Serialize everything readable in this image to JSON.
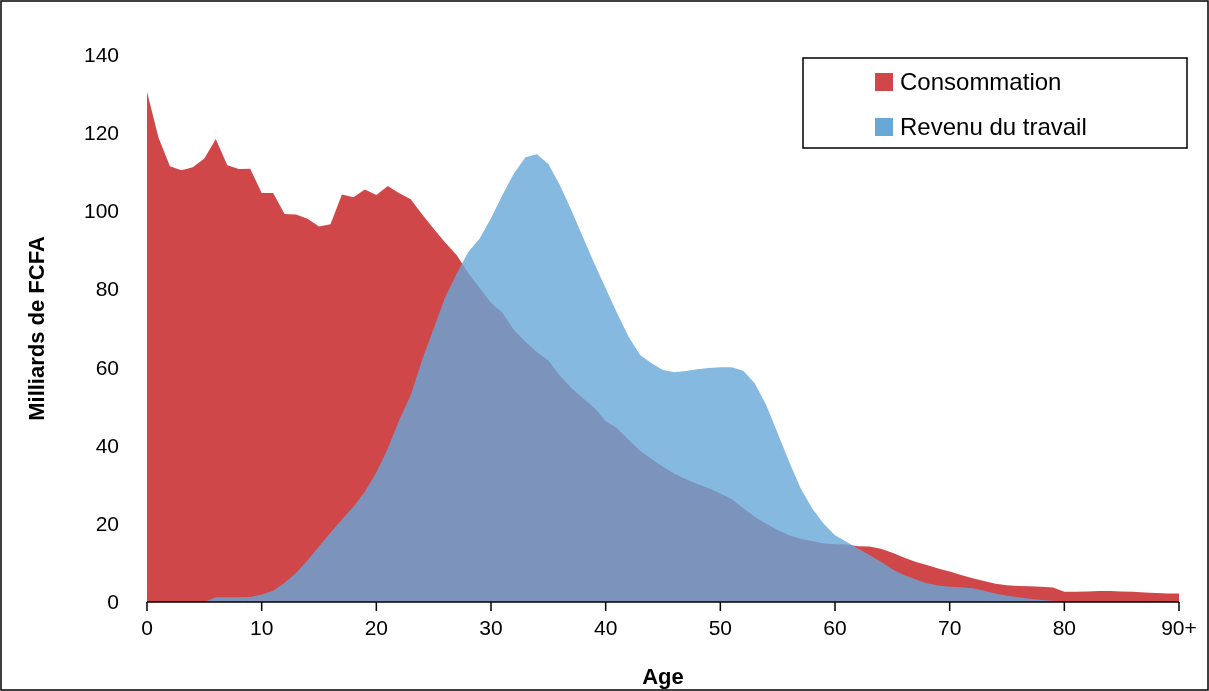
{
  "chart_data": {
    "type": "area",
    "xlabel": "Age",
    "ylabel": "Milliards de FCFA",
    "x": [
      0,
      1,
      2,
      3,
      4,
      5,
      6,
      7,
      8,
      9,
      10,
      11,
      12,
      13,
      14,
      15,
      16,
      17,
      18,
      19,
      20,
      21,
      22,
      23,
      24,
      25,
      26,
      27,
      28,
      29,
      30,
      31,
      32,
      33,
      34,
      35,
      36,
      37,
      38,
      39,
      40,
      41,
      42,
      43,
      44,
      45,
      46,
      47,
      48,
      49,
      50,
      51,
      52,
      53,
      54,
      55,
      56,
      57,
      58,
      59,
      60,
      61,
      62,
      63,
      64,
      65,
      66,
      67,
      68,
      69,
      70,
      71,
      72,
      73,
      74,
      75,
      76,
      77,
      78,
      79,
      80,
      81,
      82,
      83,
      84,
      85,
      86,
      87,
      88,
      89,
      90
    ],
    "series": [
      {
        "name": "Consommation",
        "color": "#d0474a",
        "values": [
          130.6,
          118.9,
          111.5,
          110.5,
          111.3,
          113.5,
          118.5,
          111.8,
          110.8,
          110.9,
          104.7,
          104.7,
          99.3,
          99.2,
          98.1,
          96.1,
          96.7,
          104.3,
          103.6,
          105.6,
          104.2,
          106.5,
          104.6,
          103.1,
          99.2,
          95.5,
          92,
          88.8,
          84.3,
          80.4,
          76.5,
          74,
          69.6,
          66.6,
          64,
          61.8,
          58,
          54.8,
          52.2,
          49.7,
          46.3,
          44.5,
          41.5,
          38.7,
          36.6,
          34.6,
          32.8,
          31.4,
          30.2,
          29.1,
          27.8,
          26.3,
          24,
          21.8,
          20,
          18.4,
          17.1,
          16.2,
          15.6,
          15,
          14.8,
          14.7,
          14.3,
          14.2,
          13.6,
          12.6,
          11.4,
          10.3,
          9.5,
          8.6,
          7.8,
          6.9,
          6.1,
          5.4,
          4.7,
          4.3,
          4.1,
          4,
          3.9,
          3.7,
          2.6,
          2.6,
          2.7,
          2.8,
          2.8,
          2.7,
          2.6,
          2.4,
          2.3,
          2.2,
          2.2
        ]
      },
      {
        "name": "Revenu du travail",
        "color": "#67a8d8",
        "values": [
          0,
          0,
          0,
          0,
          0,
          0,
          1.2,
          1.2,
          1.2,
          1.3,
          1.9,
          2.9,
          4.9,
          7.4,
          10.7,
          14.2,
          17.7,
          21.1,
          24.4,
          28.2,
          33.2,
          39.3,
          46.6,
          53,
          62,
          70,
          78,
          84,
          89.5,
          93,
          98.2,
          104.2,
          109.7,
          113.8,
          114.6,
          112.1,
          106.7,
          100.3,
          93.5,
          86.7,
          80.3,
          73.9,
          67.9,
          63.2,
          61.1,
          59.4,
          58.8,
          59.1,
          59.6,
          59.9,
          60.1,
          60.1,
          59.2,
          56,
          50.4,
          43.2,
          35.9,
          29.1,
          24,
          20.1,
          17.1,
          15.4,
          13.7,
          12,
          10.3,
          8.4,
          6.9,
          5.8,
          4.8,
          4.2,
          3.9,
          3.8,
          3.5,
          2.9,
          2.2,
          1.6,
          1.2,
          0.8,
          0.5,
          0.3,
          0,
          0,
          0,
          0,
          0,
          0,
          0,
          0,
          0,
          0,
          0
        ]
      }
    ],
    "xlim": [
      0,
      90
    ],
    "xticks": [
      0,
      10,
      20,
      30,
      40,
      50,
      60,
      70,
      80,
      {
        "value": 90,
        "label": "90+"
      }
    ],
    "ylim": [
      0,
      140
    ],
    "yticks": [
      0,
      20,
      40,
      60,
      80,
      100,
      120,
      140
    ],
    "legend": "top right"
  }
}
